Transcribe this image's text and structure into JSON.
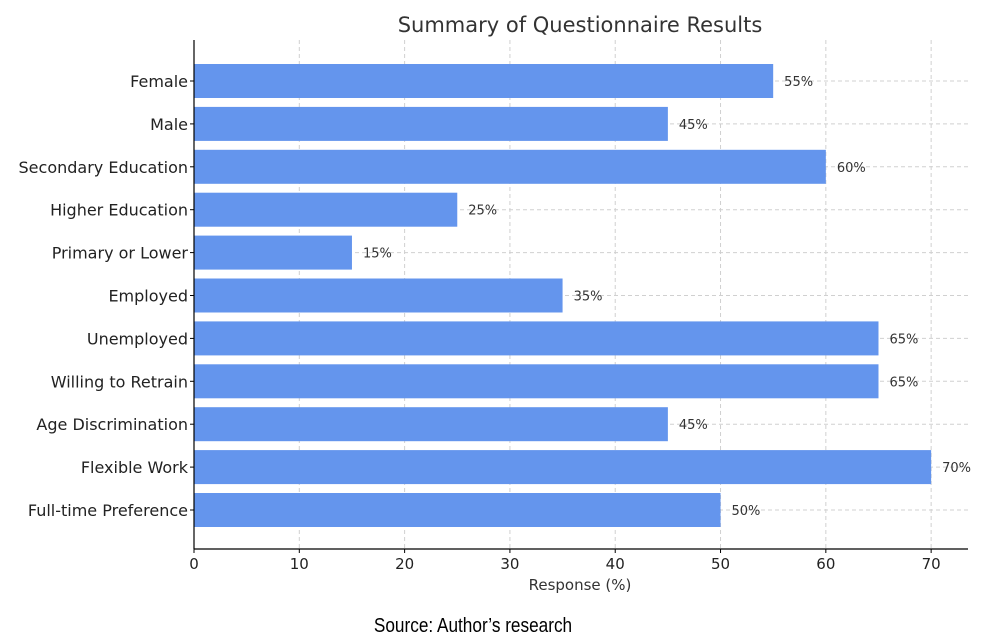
{
  "chart_data": {
    "type": "bar",
    "orientation": "horizontal",
    "title": "Summary of Questionnaire Results",
    "xlabel": "Response (%)",
    "ylabel": "",
    "categories": [
      "Female",
      "Male",
      "Secondary Education",
      "Higher Education",
      "Primary or Lower",
      "Employed",
      "Unemployed",
      "Willing to Retrain",
      "Age Discrimination",
      "Flexible Work",
      "Full-time Preference"
    ],
    "values": [
      55,
      45,
      60,
      25,
      15,
      35,
      65,
      65,
      45,
      70,
      50
    ],
    "data_labels": [
      "55%",
      "45%",
      "60%",
      "25%",
      "15%",
      "35%",
      "65%",
      "65%",
      "45%",
      "70%",
      "50%"
    ],
    "xlim": [
      0,
      73.5
    ],
    "xticks": [
      0,
      10,
      20,
      30,
      40,
      50,
      60,
      70
    ],
    "grid": true,
    "bar_color": "#6495ed"
  },
  "source": "Source: Author’s research"
}
